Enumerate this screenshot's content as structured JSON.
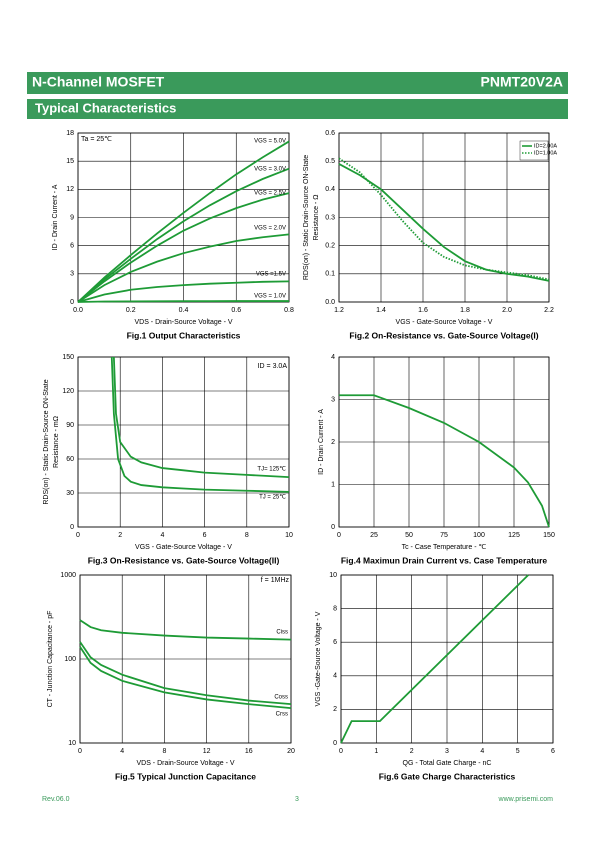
{
  "header": {
    "left": "N-Channel MOSFET",
    "right": "PNMT20V2A"
  },
  "section_title": "Typical Characteristics",
  "footer": {
    "revision": "Rev.06.0",
    "page": "3",
    "url": "www.prisemi.com"
  },
  "chart_data": [
    {
      "type": "line",
      "title": "Fig.1 Output Characteristics",
      "xlabel": "VDS - Drain-Source Voltage - V",
      "ylabel": [
        "ID - Drain Current - A"
      ],
      "x": [
        0,
        0.1,
        0.2,
        0.3,
        0.4,
        0.5,
        0.6,
        0.7,
        0.8
      ],
      "xlim": [
        0,
        0.8
      ],
      "xticks": [
        {
          "value": 0,
          "label": "0.0"
        },
        0.2,
        0.4,
        0.6,
        0.8
      ],
      "ylim": [
        0,
        18
      ],
      "yticks": [
        0,
        3,
        6,
        9,
        12,
        15,
        18
      ],
      "grid": true,
      "annotations": [
        "Ta = 25℃"
      ],
      "series": [
        {
          "name": "VGS = 5.0V",
          "color": "#1e9b36",
          "values": [
            0,
            2.6,
            5,
            7.3,
            9.5,
            11.6,
            13.6,
            15.4,
            17.1
          ]
        },
        {
          "name": "VGS = 3.0V",
          "color": "#1e9b36",
          "values": [
            0,
            2.4,
            4.6,
            6.7,
            8.6,
            10.3,
            11.8,
            13.1,
            14.2
          ]
        },
        {
          "name": "VGS = 2.5V",
          "color": "#1e9b36",
          "values": [
            0,
            2.2,
            4.2,
            6,
            7.6,
            8.9,
            10,
            10.9,
            11.6
          ]
        },
        {
          "name": "VGS = 2.0V",
          "color": "#1e9b36",
          "values": [
            0,
            1.8,
            3.2,
            4.3,
            5.2,
            5.9,
            6.5,
            6.9,
            7.2
          ]
        },
        {
          "name": "VGS =1.5V",
          "color": "#1e9b36",
          "values": [
            0,
            0.8,
            1.3,
            1.6,
            1.8,
            1.95,
            2.05,
            2.15,
            2.2
          ]
        },
        {
          "name": "VGS = 1.0V",
          "color": "#1e9b36",
          "values": [
            0,
            0.05,
            0.07,
            0.08,
            0.09,
            0.09,
            0.1,
            0.1,
            0.1
          ]
        }
      ]
    },
    {
      "type": "line",
      "title": "Fig.2 On-Resistance vs. Gate-Source Voltage(I)",
      "xlabel": "VGS - Gate-Source Voltage - V",
      "ylabel": [
        "RDS(on) - Static Drain-Source ON-State",
        "Resistance - Ω"
      ],
      "x": [
        1.2,
        1.3,
        1.4,
        1.5,
        1.6,
        1.7,
        1.8,
        1.9,
        2.0,
        2.1,
        2.2
      ],
      "xlim": [
        1.2,
        2.2
      ],
      "xticks": [
        1.2,
        1.4,
        1.6,
        1.8,
        {
          "value": 2,
          "label": "2.0"
        },
        2.2
      ],
      "ylim": [
        0,
        0.6
      ],
      "yticks": [
        {
          "value": 0,
          "label": "0.0"
        },
        0.1,
        0.2,
        0.3,
        0.4,
        0.5,
        0.6
      ],
      "grid": true,
      "legend": "upper right",
      "series": [
        {
          "name": "ID=2.00A",
          "color": "#1e9b36",
          "style": "solid",
          "values": [
            0.49,
            0.45,
            0.4,
            0.33,
            0.26,
            0.195,
            0.145,
            0.115,
            0.1,
            0.09,
            0.075
          ]
        },
        {
          "name": "ID=1.00A",
          "color": "#1e9b36",
          "style": "dotted",
          "values": [
            0.51,
            0.46,
            0.38,
            0.29,
            0.21,
            0.16,
            0.13,
            0.115,
            0.105,
            0.095,
            0.08
          ]
        }
      ]
    },
    {
      "type": "line",
      "title": "Fig.3 On-Resistance vs. Gate-Source Voltage(II)",
      "xlabel": "VGS - Gate-Source Voltage - V",
      "ylabel": [
        "RDS(on) - Static Drain-Source ON-State",
        "Resistance - mΩ"
      ],
      "xlim": [
        0,
        10
      ],
      "xticks": [
        0,
        2,
        4,
        6,
        8,
        10
      ],
      "ylim": [
        0,
        150
      ],
      "yticks": [
        0,
        30,
        60,
        90,
        120,
        150
      ],
      "grid": true,
      "annotations": [
        "ID = 3.0A"
      ],
      "series": [
        {
          "name": "TJ= 125℃",
          "color": "#1e9b36",
          "x": [
            1.7,
            1.8,
            2,
            2.5,
            3,
            4,
            5,
            6,
            8,
            10
          ],
          "values": [
            150,
            100,
            75,
            62,
            57,
            52,
            50,
            48,
            46,
            44
          ]
        },
        {
          "name": "TJ = 25℃",
          "color": "#1e9b36",
          "x": [
            1.6,
            1.7,
            1.9,
            2.2,
            2.5,
            3,
            4,
            5,
            6,
            8,
            10
          ],
          "values": [
            150,
            100,
            60,
            45,
            40,
            37,
            35,
            34,
            33,
            32,
            31
          ]
        }
      ]
    },
    {
      "type": "line",
      "title": "Fig.4 Maximun Drain Current vs. Case Temperature",
      "xlabel": "Tc - Case Temperature - ℃",
      "ylabel": [
        "ID - Drain Current - A"
      ],
      "xlim": [
        0,
        150
      ],
      "xticks": [
        0,
        25,
        50,
        75,
        100,
        125,
        150
      ],
      "ylim": [
        0,
        4
      ],
      "yticks": [
        0,
        1,
        2,
        3,
        4
      ],
      "grid": true,
      "series": [
        {
          "color": "#1e9b36",
          "x": [
            0,
            25,
            50,
            75,
            100,
            125,
            135,
            145,
            150
          ],
          "values": [
            3.1,
            3.1,
            2.8,
            2.45,
            2.0,
            1.4,
            1.05,
            0.5,
            0
          ]
        }
      ]
    },
    {
      "type": "line",
      "title": "Fig.5 Typical Junction Capacitance",
      "xlabel": "VDS - Drain-Source Voltage - V",
      "ylabel": [
        "CT - Junction Capacitance - pF"
      ],
      "xlim": [
        0,
        20
      ],
      "xticks": [
        0,
        4,
        8,
        12,
        16,
        20
      ],
      "ylim": [
        10,
        1000
      ],
      "yscale": "log",
      "yticks": [
        10,
        100,
        1000
      ],
      "grid": true,
      "annotations": [
        "f = 1MHz"
      ],
      "series": [
        {
          "name": "Ciss",
          "color": "#1e9b36",
          "x": [
            0,
            1,
            2,
            4,
            8,
            12,
            16,
            20
          ],
          "values": [
            290,
            240,
            220,
            205,
            190,
            180,
            175,
            170
          ]
        },
        {
          "name": "Coss",
          "color": "#1e9b36",
          "x": [
            0,
            1,
            2,
            4,
            8,
            12,
            16,
            20
          ],
          "values": [
            160,
            105,
            85,
            65,
            45,
            37,
            32,
            29
          ]
        },
        {
          "name": "Crss",
          "color": "#1e9b36",
          "x": [
            0,
            1,
            2,
            4,
            8,
            12,
            16,
            20
          ],
          "values": [
            140,
            90,
            72,
            55,
            40,
            33,
            29,
            26
          ]
        }
      ]
    },
    {
      "type": "line",
      "title": "Fig.6 Gate Charge Characteristics",
      "xlabel": "QG - Total Gate Charge - nC",
      "ylabel": [
        "VGS -Gate-Source Voltage - V"
      ],
      "xlim": [
        0,
        6
      ],
      "xticks": [
        0,
        1,
        2,
        3,
        4,
        5,
        6
      ],
      "ylim": [
        0,
        10
      ],
      "yticks": [
        0,
        2,
        4,
        6,
        8,
        10
      ],
      "grid": true,
      "series": [
        {
          "color": "#1e9b36",
          "x": [
            0,
            0.3,
            1.1,
            5.3
          ],
          "values": [
            0,
            1.3,
            1.3,
            10
          ]
        }
      ]
    }
  ]
}
